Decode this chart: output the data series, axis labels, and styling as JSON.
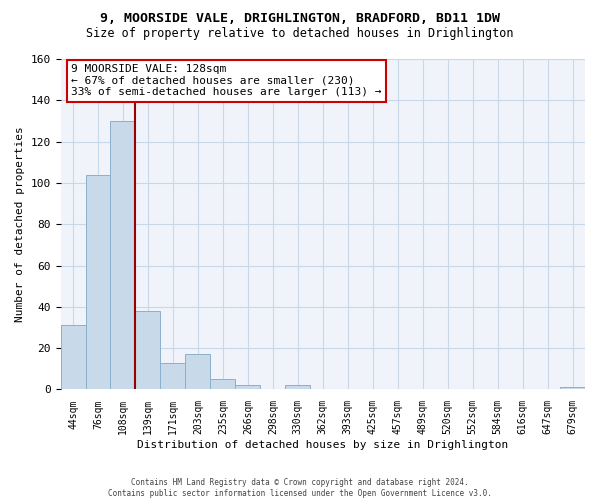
{
  "title": "9, MOORSIDE VALE, DRIGHLINGTON, BRADFORD, BD11 1DW",
  "subtitle": "Size of property relative to detached houses in Drighlington",
  "xlabel": "Distribution of detached houses by size in Drighlington",
  "ylabel": "Number of detached properties",
  "bar_labels": [
    "44sqm",
    "76sqm",
    "108sqm",
    "139sqm",
    "171sqm",
    "203sqm",
    "235sqm",
    "266sqm",
    "298sqm",
    "330sqm",
    "362sqm",
    "393sqm",
    "425sqm",
    "457sqm",
    "489sqm",
    "520sqm",
    "552sqm",
    "584sqm",
    "616sqm",
    "647sqm",
    "679sqm"
  ],
  "bar_values": [
    31,
    104,
    130,
    38,
    13,
    17,
    5,
    2,
    0,
    2,
    0,
    0,
    0,
    0,
    0,
    0,
    0,
    0,
    0,
    0,
    1
  ],
  "bar_color": "#c8daea",
  "bar_edge_color": "#8ab0cc",
  "vline_x_idx": 2,
  "vline_color": "#990000",
  "annotation_title": "9 MOORSIDE VALE: 128sqm",
  "annotation_line1": "← 67% of detached houses are smaller (230)",
  "annotation_line2": "33% of semi-detached houses are larger (113) →",
  "annotation_box_color": "#ffffff",
  "annotation_box_edge_color": "#cc0000",
  "ylim": [
    0,
    160
  ],
  "yticks": [
    0,
    20,
    40,
    60,
    80,
    100,
    120,
    140,
    160
  ],
  "footer_line1": "Contains HM Land Registry data © Crown copyright and database right 2024.",
  "footer_line2": "Contains public sector information licensed under the Open Government Licence v3.0.",
  "bg_color": "#ffffff",
  "plot_bg_color": "#f0f4fa",
  "grid_color": "#c8d8e8"
}
